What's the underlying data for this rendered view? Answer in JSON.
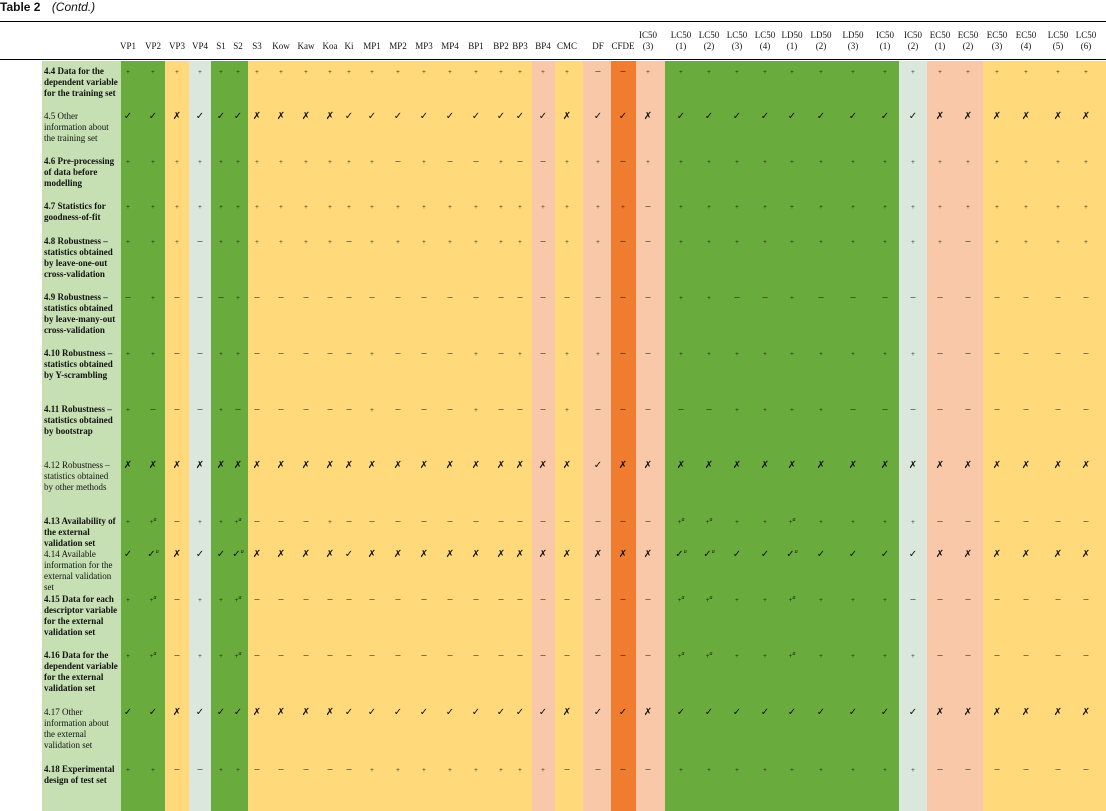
{
  "caption": {
    "table_no": "Table 2",
    "cont": "(Contd.)"
  },
  "colors": {
    "light_green": "#c6e0b4",
    "green": "#6aab3e",
    "gray": "#dbe6dc",
    "yellow": "#ffd97a",
    "salmon": "#f9c8a8",
    "orange": "#f07d2f"
  },
  "symbols": {
    "+": "+",
    "-": "–",
    "v": "✓",
    "x": "✗"
  },
  "columns": [
    {
      "top": "",
      "bot": "VP1",
      "band": "green"
    },
    {
      "top": "",
      "bot": "VP2",
      "band": "green"
    },
    {
      "top": "",
      "bot": "VP3",
      "band": "yellow"
    },
    {
      "top": "",
      "bot": "VP4",
      "band": "gray"
    },
    {
      "top": "",
      "bot": "S1",
      "band": "green"
    },
    {
      "top": "",
      "bot": "S2",
      "band": "green"
    },
    {
      "top": "",
      "bot": "S3",
      "band": "yellow"
    },
    {
      "top": "",
      "bot": "Kow",
      "band": "yellow"
    },
    {
      "top": "",
      "bot": "Kaw",
      "band": "yellow"
    },
    {
      "top": "",
      "bot": "Koa",
      "band": "yellow"
    },
    {
      "top": "",
      "bot": "Ki",
      "band": "yellow"
    },
    {
      "top": "",
      "bot": "MP1",
      "band": "yellow"
    },
    {
      "top": "",
      "bot": "MP2",
      "band": "yellow"
    },
    {
      "top": "",
      "bot": "MP3",
      "band": "yellow"
    },
    {
      "top": "",
      "bot": "MP4",
      "band": "yellow"
    },
    {
      "top": "",
      "bot": "BP1",
      "band": "yellow"
    },
    {
      "top": "",
      "bot": "BP2",
      "band": "yellow"
    },
    {
      "top": "",
      "bot": "BP3",
      "band": "yellow"
    },
    {
      "top": "",
      "bot": "BP4",
      "band": "salmon"
    },
    {
      "top": "",
      "bot": "CMC",
      "band": "yellow"
    },
    {
      "top": "",
      "bot": "DF",
      "band": "salmon"
    },
    {
      "top": "",
      "bot": "CFDE",
      "band": "orange"
    },
    {
      "top": "IC50",
      "bot": "(3)",
      "band": "salmon"
    },
    {
      "top": "LC50",
      "bot": "(1)",
      "band": "green"
    },
    {
      "top": "LC50",
      "bot": "(2)",
      "band": "green"
    },
    {
      "top": "LC50",
      "bot": "(3)",
      "band": "green"
    },
    {
      "top": "LC50",
      "bot": "(4)",
      "band": "green"
    },
    {
      "top": "LD50",
      "bot": "(1)",
      "band": "green"
    },
    {
      "top": "LD50",
      "bot": "(2)",
      "band": "green"
    },
    {
      "top": "LD50",
      "bot": "(3)",
      "band": "green"
    },
    {
      "top": "IC50",
      "bot": "(1)",
      "band": "green"
    },
    {
      "top": "IC50",
      "bot": "(2)",
      "band": "gray"
    },
    {
      "top": "EC50",
      "bot": "(1)",
      "band": "salmon"
    },
    {
      "top": "EC50",
      "bot": "(2)",
      "band": "salmon"
    },
    {
      "top": "EC50",
      "bot": "(3)",
      "band": "yellow"
    },
    {
      "top": "EC50",
      "bot": "(4)",
      "band": "yellow"
    },
    {
      "top": "LC50",
      "bot": "(5)",
      "band": "yellow"
    },
    {
      "top": "LC50",
      "bot": "(6)",
      "band": "yellow"
    }
  ],
  "rows": [
    {
      "label": "4.4 Data for the dependent variable for the training set",
      "bold": true,
      "cells": [
        "+",
        "+",
        "+",
        "+",
        "+",
        "+",
        "+",
        "+",
        "+",
        "+",
        "+",
        "+",
        "+",
        "+",
        "+",
        "+",
        "+",
        "+",
        "+",
        "+",
        "-",
        "-",
        "+",
        "+",
        "+",
        "+",
        "+",
        "+",
        "+",
        "+",
        "+",
        "+",
        "+",
        "+",
        "+",
        "+",
        "+",
        "+"
      ]
    },
    {
      "label": "4.5 Other information about the training set",
      "bold": false,
      "cells": [
        "v",
        "v",
        "x",
        "v",
        "v",
        "v",
        "x",
        "x",
        "x",
        "x",
        "v",
        "v",
        "v",
        "v",
        "v",
        "v",
        "v",
        "v",
        "v",
        "x",
        "v",
        "v",
        "x",
        "v",
        "v",
        "v",
        "v",
        "v",
        "v",
        "v",
        "v",
        "v",
        "x",
        "x",
        "x",
        "x",
        "x",
        "x"
      ]
    },
    {
      "label": "4.6 Pre-processing of data before modelling",
      "bold": true,
      "cells": [
        "+",
        "+",
        "+",
        "+",
        "+",
        "+",
        "+",
        "+",
        "+",
        "+",
        "+",
        "+",
        "-",
        "+",
        "-",
        "-",
        "+",
        "-",
        "-",
        "+",
        "+",
        "-",
        "+",
        "+",
        "+",
        "+",
        "+",
        "+",
        "+",
        "+",
        "+",
        "+",
        "+",
        "+",
        "+",
        "+",
        "+",
        "+"
      ]
    },
    {
      "label": "4.7 Statistics for goodness-of-fit",
      "bold": true,
      "cells": [
        "+",
        "+",
        "+",
        "+",
        "+",
        "+",
        "+",
        "+",
        "+",
        "+",
        "+",
        "+",
        "+",
        "+",
        "+",
        "+",
        "+",
        "+",
        "+",
        "+",
        "+",
        "+",
        "-",
        "+",
        "+",
        "+",
        "+",
        "+",
        "+",
        "+",
        "+",
        "+",
        "+",
        "+",
        "+",
        "+",
        "+",
        "+"
      ]
    },
    {
      "label": "4.8 Robustness – statistics obtained by leave-one-out cross-validation",
      "bold": true,
      "cells": [
        "+",
        "+",
        "+",
        "-",
        "+",
        "+",
        "+",
        "+",
        "+",
        "+",
        "-",
        "+",
        "+",
        "+",
        "+",
        "+",
        "+",
        "+",
        "-",
        "+",
        "+",
        "-",
        "-",
        "+",
        "+",
        "+",
        "+",
        "+",
        "+",
        "+",
        "+",
        "+",
        "+",
        "-",
        "+",
        "+",
        "+",
        "+"
      ]
    },
    {
      "label": "4.9 Robustness – statistics obtained by leave-many-out cross-validation",
      "bold": true,
      "cells": [
        "-",
        "+",
        "-",
        "-",
        "-",
        "+",
        "-",
        "-",
        "-",
        "-",
        "-",
        "-",
        "-",
        "-",
        "-",
        "-",
        "-",
        "-",
        "-",
        "-",
        "-",
        "-",
        "-",
        "+",
        "+",
        "-",
        "-",
        "+",
        "-",
        "-",
        "-",
        "-",
        "-",
        "-",
        "-",
        "-",
        "-",
        "-"
      ]
    },
    {
      "label": "4.10 Robustness – statistics obtained by Y-scrambling",
      "bold": true,
      "cells": [
        "+",
        "+",
        "-",
        "-",
        "+",
        "+",
        "-",
        "-",
        "-",
        "-",
        "-",
        "+",
        "-",
        "-",
        "-",
        "+",
        "-",
        "+",
        "-",
        "+",
        "+",
        "-",
        "-",
        "+",
        "+",
        "+",
        "+",
        "+",
        "+",
        "+",
        "+",
        "+",
        "-",
        "-",
        "-",
        "-",
        "-",
        "-"
      ]
    },
    {
      "label": "4.11 Robustness – statistics obtained by bootstrap",
      "bold": true,
      "cells": [
        "+",
        "-",
        "-",
        "-",
        "+",
        "-",
        "-",
        "-",
        "-",
        "-",
        "-",
        "+",
        "-",
        "-",
        "-",
        "+",
        "-",
        "-",
        "-",
        "+",
        "-",
        "-",
        "-",
        "-",
        "-",
        "+",
        "+",
        "+",
        "+",
        "-",
        "-",
        "-",
        "-",
        "-",
        "-",
        "-",
        "-",
        "-"
      ]
    },
    {
      "label": "4.12 Robustness – statistics obtained by other methods",
      "bold": false,
      "cells": [
        "x",
        "x",
        "x",
        "x",
        "x",
        "x",
        "x",
        "x",
        "x",
        "x",
        "x",
        "x",
        "x",
        "x",
        "x",
        "x",
        "x",
        "x",
        "x",
        "x",
        "v",
        "x",
        "x",
        "x",
        "x",
        "x",
        "x",
        "x",
        "x",
        "x",
        "x",
        "x",
        "x",
        "x",
        "x",
        "x",
        "x",
        "x"
      ]
    },
    {
      "label": "4.13 Availability of the external validation set",
      "bold": true,
      "cells": [
        "+",
        "+a",
        "-",
        "+",
        "+",
        "+a",
        "-",
        "-",
        "-",
        "+",
        "-",
        "-",
        "-",
        "-",
        "-",
        "-",
        "-",
        "-",
        "-",
        "-",
        "-",
        "-",
        "-",
        "+a",
        "+a",
        "+",
        "+",
        "+a",
        "+",
        "+",
        "+",
        "+",
        "-",
        "-",
        "-",
        "-",
        "-",
        "-"
      ]
    },
    {
      "label": "4.14 Available information for the external validation set",
      "bold": false,
      "cells": [
        "v",
        "va",
        "x",
        "v",
        "v",
        "va",
        "x",
        "x",
        "x",
        "x",
        "v",
        "x",
        "x",
        "x",
        "x",
        "x",
        "x",
        "x",
        "x",
        "x",
        "x",
        "x",
        "x",
        "va",
        "va",
        "v",
        "v",
        "va",
        "v",
        "v",
        "v",
        "v",
        "x",
        "x",
        "x",
        "x",
        "x",
        "x"
      ]
    },
    {
      "label": "4.15 Data for each descriptor variable for the external validation set",
      "bold": true,
      "cells": [
        "+",
        "+a",
        "-",
        "+",
        "+",
        "+a",
        "-",
        "-",
        "-",
        "-",
        "-",
        "-",
        "-",
        "-",
        "-",
        "-",
        "-",
        "-",
        "-",
        "-",
        "-",
        "-",
        "-",
        "+a",
        "+a",
        "+",
        "+",
        "+a",
        "+",
        "+",
        "+",
        "-",
        "-",
        "-",
        "-",
        "-",
        "-",
        "-"
      ]
    },
    {
      "label": "4.16 Data for the dependent variable for the external validation set",
      "bold": true,
      "cells": [
        "+",
        "+a",
        "-",
        "+",
        "+",
        "+a",
        "-",
        "-",
        "-",
        "-",
        "-",
        "-",
        "-",
        "-",
        "-",
        "-",
        "-",
        "-",
        "-",
        "-",
        "-",
        "-",
        "-",
        "+a",
        "+a",
        "+",
        "+",
        "+a",
        "+",
        "+",
        "+",
        "+",
        "-",
        "-",
        "-",
        "-",
        "-",
        "-"
      ]
    },
    {
      "label": "4.17 Other information about the external validation set",
      "bold": false,
      "cells": [
        "v",
        "v",
        "x",
        "v",
        "v",
        "v",
        "x",
        "x",
        "x",
        "x",
        "v",
        "v",
        "v",
        "v",
        "v",
        "v",
        "v",
        "v",
        "v",
        "x",
        "v",
        "v",
        "x",
        "v",
        "v",
        "v",
        "v",
        "v",
        "v",
        "v",
        "v",
        "v",
        "x",
        "x",
        "x",
        "x",
        "x",
        "x"
      ]
    },
    {
      "label": "4.18 Experimental design of test set",
      "bold": true,
      "cells": [
        "+",
        "+",
        "-",
        "-",
        "+",
        "+",
        "-",
        "-",
        "-",
        "-",
        "-",
        "+",
        "+",
        "+",
        "+",
        "+",
        "+",
        "+",
        "+",
        "-",
        "-",
        "-",
        "-",
        "+",
        "+",
        "+",
        "+",
        "+",
        "+",
        "+",
        "+",
        "+",
        "-",
        "-",
        "-",
        "-",
        "-",
        "-"
      ]
    }
  ]
}
